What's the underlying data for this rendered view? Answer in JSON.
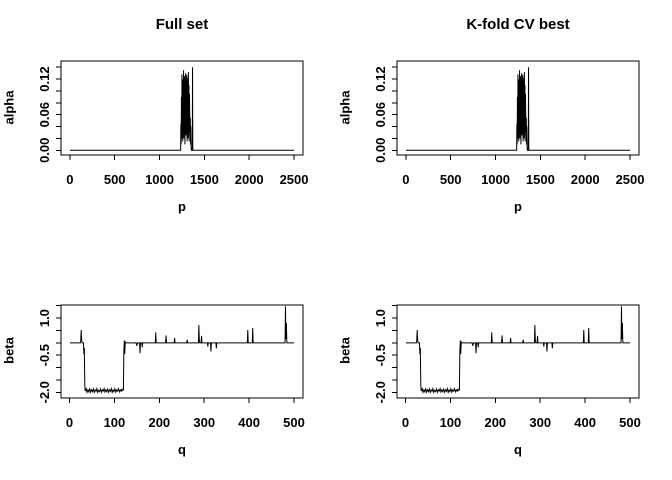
{
  "figure": {
    "background_color": "#ffffff",
    "line_color": "#000000"
  },
  "chart_data": {
    "type": "line",
    "layout_hint": "2x2 grid of R base-graphics line plots; black lines on white; box frame with outward ticks; no grid; no legend",
    "panels": [
      {
        "id": "top-left",
        "title": "Full set",
        "xlabel": "p",
        "ylabel": "alpha",
        "series": "alpha",
        "xlim": [
          -99,
          2600
        ],
        "ylim": [
          -0.008,
          0.1505
        ],
        "xticks": [
          0,
          500,
          1000,
          1500,
          2000,
          2500
        ],
        "xtick_labels": [
          "0",
          "500",
          "1000",
          "1500",
          "2000",
          "2500"
        ],
        "yticks": [
          0,
          0.02,
          0.04,
          0.06,
          0.08,
          0.1,
          0.12,
          0.14
        ],
        "ytick_labels": [
          "0.00",
          "",
          "",
          "0.06",
          "",
          "",
          "0.12",
          ""
        ]
      },
      {
        "id": "top-right",
        "title": "K-fold CV best",
        "xlabel": "p",
        "ylabel": "alpha",
        "series": "alpha",
        "xlim": [
          -99,
          2600
        ],
        "ylim": [
          -0.008,
          0.1505
        ],
        "xticks": [
          0,
          500,
          1000,
          1500,
          2000,
          2500
        ],
        "xtick_labels": [
          "0",
          "500",
          "1000",
          "1500",
          "2000",
          "2500"
        ],
        "yticks": [
          0,
          0.02,
          0.04,
          0.06,
          0.08,
          0.1,
          0.12,
          0.14
        ],
        "ytick_labels": [
          "0.00",
          "",
          "",
          "0.06",
          "",
          "",
          "0.12",
          ""
        ]
      },
      {
        "id": "bottom-left",
        "title": "",
        "xlabel": "q",
        "ylabel": "beta",
        "series": "beta",
        "xlim": [
          -19,
          520
        ],
        "ylim": [
          -2.23,
          1.53
        ],
        "xticks": [
          0,
          100,
          200,
          300,
          400,
          500
        ],
        "xtick_labels": [
          "0",
          "100",
          "200",
          "300",
          "400",
          "500"
        ],
        "yticks": [
          -2.0,
          -1.5,
          -1.0,
          -0.5,
          0,
          0.5,
          1.0,
          1.5
        ],
        "ytick_labels": [
          "-2.0",
          "",
          "",
          "-0.5",
          "",
          "",
          "1.0",
          ""
        ]
      },
      {
        "id": "bottom-right",
        "title": "",
        "xlabel": "q",
        "ylabel": "beta",
        "series": "beta",
        "xlim": [
          -19,
          520
        ],
        "ylim": [
          -2.23,
          1.53
        ],
        "xticks": [
          0,
          100,
          200,
          300,
          400,
          500
        ],
        "xtick_labels": [
          "0",
          "100",
          "200",
          "300",
          "400",
          "500"
        ],
        "yticks": [
          -2.0,
          -1.5,
          -1.0,
          -0.5,
          0,
          0.5,
          1.0,
          1.5
        ],
        "ytick_labels": [
          "-2.0",
          "",
          "",
          "-0.5",
          "",
          "",
          "1.0",
          ""
        ]
      }
    ],
    "series": {
      "alpha": {
        "x": [
          1,
          1235,
          1238,
          1241,
          1244,
          1247,
          1250,
          1253,
          1256,
          1259,
          1262,
          1265,
          1268,
          1271,
          1274,
          1277,
          1280,
          1283,
          1286,
          1289,
          1292,
          1295,
          1298,
          1301,
          1304,
          1307,
          1310,
          1313,
          1316,
          1319,
          1322,
          1325,
          1328,
          1331,
          1334,
          1337,
          1340,
          1343,
          1346,
          1349,
          1352,
          1355,
          1365,
          1368,
          1371,
          2500
        ],
        "y": [
          0,
          0,
          0.045,
          0.01,
          0.09,
          0.02,
          0.128,
          0.03,
          0.105,
          0.015,
          0.12,
          0.05,
          0.135,
          0.02,
          0.118,
          0.06,
          0.125,
          0.01,
          0.1,
          0.04,
          0.13,
          0.025,
          0.112,
          0.055,
          0.127,
          0.015,
          0.108,
          0.045,
          0.122,
          0.02,
          0.132,
          0.04,
          0.11,
          0.015,
          0.095,
          0.05,
          0.03,
          0.055,
          0.01,
          0.04,
          0.005,
          0,
          0,
          0.14,
          0,
          0
        ]
      },
      "beta": {
        "x": [
          1,
          24,
          25,
          26,
          27,
          28,
          31,
          32,
          33,
          34,
          35,
          37,
          39,
          41,
          43,
          45,
          47,
          49,
          51,
          53,
          55,
          57,
          59,
          61,
          63,
          65,
          67,
          69,
          71,
          73,
          75,
          77,
          79,
          81,
          83,
          85,
          87,
          89,
          91,
          93,
          95,
          97,
          99,
          101,
          103,
          105,
          107,
          109,
          111,
          113,
          115,
          117,
          119,
          120,
          121,
          122,
          123,
          124,
          125,
          148,
          150,
          151,
          156,
          157,
          158,
          161,
          162,
          163,
          191,
          192,
          193,
          214,
          215,
          216,
          233,
          234,
          235,
          261,
          262,
          263,
          287,
          288,
          289,
          290,
          293,
          294,
          295,
          307,
          308,
          309,
          314,
          315,
          316,
          326,
          327,
          328,
          396,
          397,
          398,
          407,
          408,
          409,
          480,
          481,
          482,
          483,
          484,
          500
        ],
        "y": [
          0,
          0,
          0.08,
          0.52,
          0.1,
          0,
          0,
          -0.45,
          -0.2,
          -1.75,
          -1.95,
          -1.85,
          -2,
          -1.9,
          -1.98,
          -1.84,
          -2,
          -1.9,
          -1.97,
          -1.86,
          -2,
          -1.9,
          -1.96,
          -1.85,
          -2,
          -1.92,
          -1.97,
          -1.86,
          -2,
          -1.9,
          -1.95,
          -1.85,
          -1.99,
          -1.9,
          -1.97,
          -1.87,
          -2,
          -1.9,
          -1.96,
          -1.85,
          -2,
          -1.9,
          -1.97,
          -1.86,
          -1.99,
          -1.9,
          -1.95,
          -1.85,
          -1.98,
          -1.9,
          -1.96,
          -1.87,
          -1.93,
          -1.9,
          -0.35,
          0.1,
          -0.45,
          0.05,
          0,
          0,
          -0.12,
          0,
          0,
          -0.42,
          0,
          0,
          -0.18,
          0,
          0,
          0.42,
          0,
          0,
          0.3,
          0,
          0,
          0.2,
          0,
          0,
          0.12,
          0,
          0,
          0.72,
          0.12,
          0,
          0,
          0.28,
          0,
          0,
          -0.15,
          0,
          0,
          -0.35,
          0,
          0,
          -0.22,
          0,
          0,
          0.52,
          0,
          0,
          0.6,
          0,
          0,
          1.48,
          0.15,
          0.8,
          0,
          0
        ]
      }
    }
  }
}
